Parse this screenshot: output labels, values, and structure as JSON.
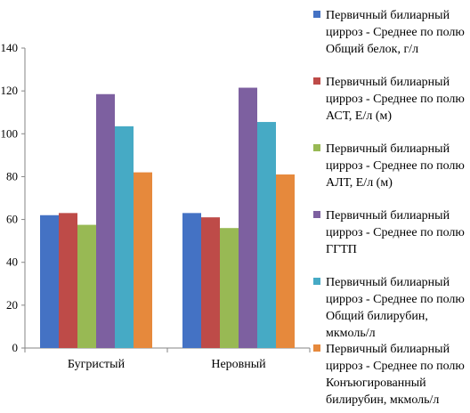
{
  "chart_data": {
    "type": "bar",
    "categories": [
      "Бугристый",
      "Неровный"
    ],
    "ylim": [
      0,
      140
    ],
    "yticks": [
      0,
      20,
      40,
      60,
      80,
      100,
      120,
      140
    ],
    "grid": false,
    "legend_position": "right",
    "series": [
      {
        "name": "Первичный билиарный цирроз - Среднее по полю Общий белок, г/л",
        "color": "#4472C4",
        "values": [
          62,
          63
        ]
      },
      {
        "name": "Первичный билиарный цирроз - Среднее по полю АСТ, Е/л (м)",
        "color": "#BE4B48",
        "values": [
          63,
          61
        ]
      },
      {
        "name": "Первичный билиарный цирроз - Среднее по полю АЛТ, Е/л (м)",
        "color": "#98B954",
        "values": [
          57.5,
          56
        ]
      },
      {
        "name": "Первичный билиарный цирроз - Среднее по полю ГГТП",
        "color": "#7D60A0",
        "values": [
          118.5,
          121.5
        ]
      },
      {
        "name": "Первичный билиарный цирроз - Среднее по полю Общий билирубин, мкмоль/л",
        "color": "#46AAC5",
        "values": [
          103.5,
          105.5
        ]
      },
      {
        "name": "Первичный билиарный цирроз - Среднее по полю Конъюгированный билирубин, мкмоль/л",
        "color": "#E6893C",
        "values": [
          82,
          81
        ]
      }
    ]
  }
}
